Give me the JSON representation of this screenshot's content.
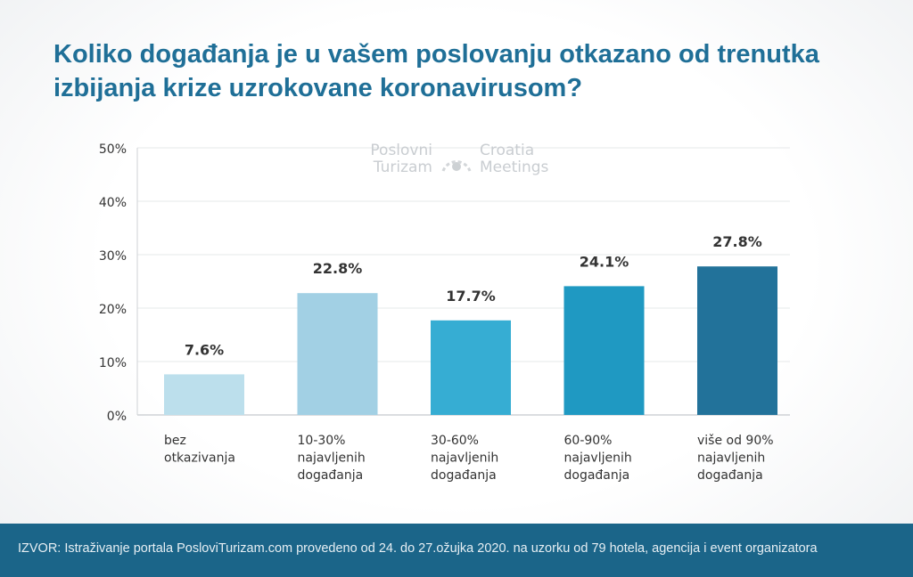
{
  "title": "Koliko događanja je u vašem poslovanju otkazano od trenutka izbijanja krize uzrokovane koronavirusom?",
  "watermark": {
    "left": [
      "Poslovni",
      "Turizam"
    ],
    "right": [
      "Croatia",
      "Meetings"
    ]
  },
  "footer": "IZVOR: Istraživanje portala PosloviTurizam.com provedeno od 24. do 27.ožujka 2020. na uzorku od 79 hotela, agencija i event organizatora",
  "chart_data": {
    "type": "bar",
    "categories": [
      [
        "bez",
        "otkazivanja"
      ],
      [
        "10-30%",
        "najavljenih",
        "događanja"
      ],
      [
        "30-60%",
        "najavljenih",
        "događanja"
      ],
      [
        "60-90%",
        "najavljenih",
        "događanja"
      ],
      [
        "više od 90%",
        "najavljenih",
        "događanja"
      ]
    ],
    "values": [
      7.6,
      22.8,
      17.7,
      24.1,
      27.8
    ],
    "data_labels": [
      "7.6%",
      "22.8%",
      "17.7%",
      "24.1%",
      "27.8%"
    ],
    "colors": [
      "#bcdfec",
      "#a2d0e4",
      "#36add3",
      "#1f99c2",
      "#22729a"
    ],
    "ylim": [
      0,
      50
    ],
    "yticks": [
      "0%",
      "10%",
      "20%",
      "30%",
      "40%",
      "50%"
    ],
    "grid": true
  }
}
